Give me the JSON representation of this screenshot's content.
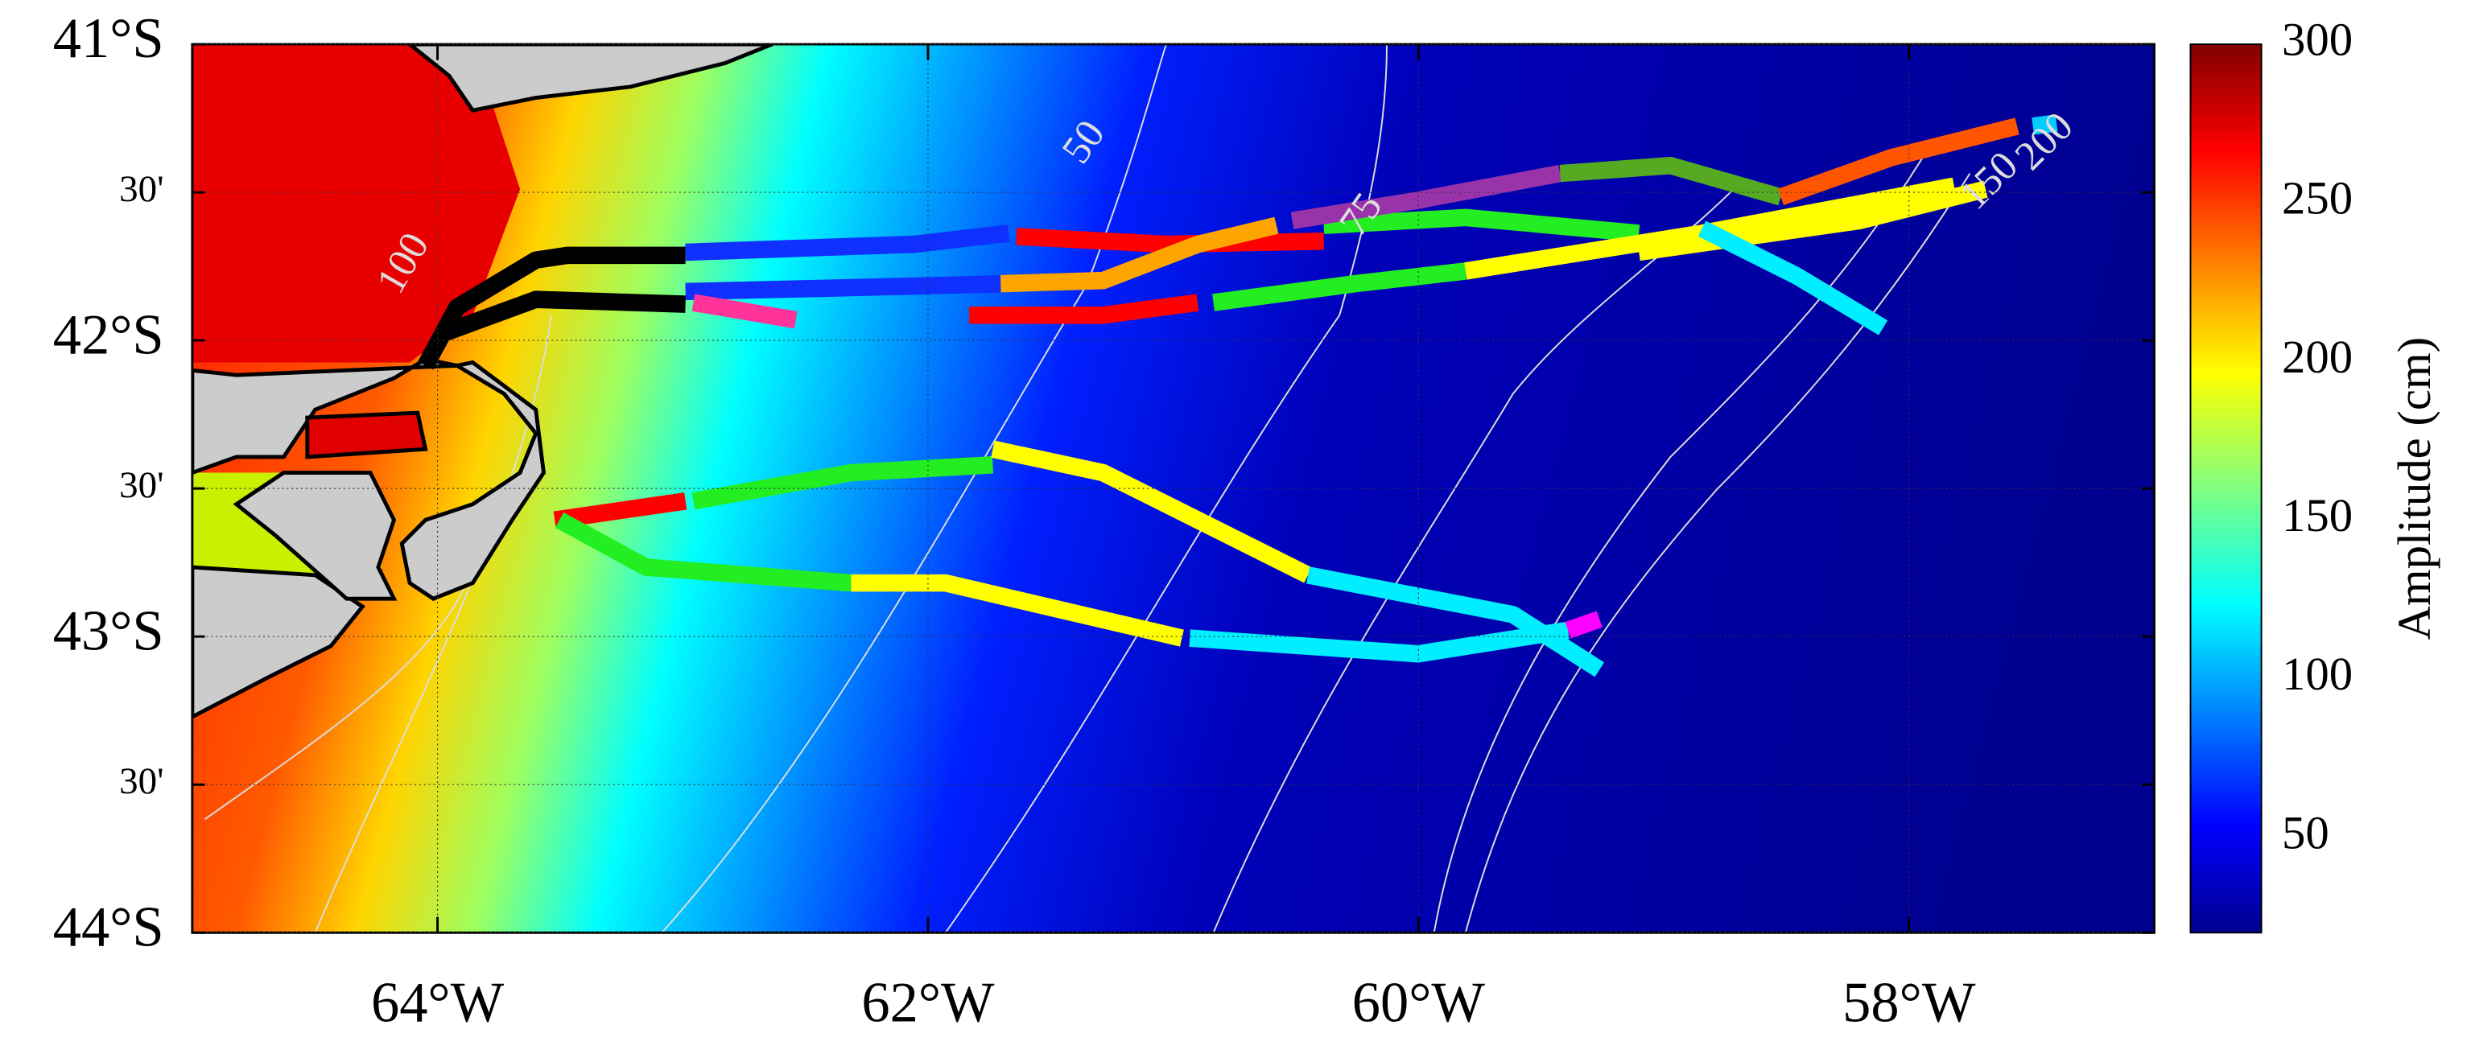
{
  "map": {
    "lat_ticks": [
      {
        "value": 41,
        "label": "41°S"
      },
      {
        "value": 41.5,
        "label": "30'"
      },
      {
        "value": 42,
        "label": "42°S"
      },
      {
        "value": 42.5,
        "label": "30'"
      },
      {
        "value": 43,
        "label": "43°S"
      },
      {
        "value": 43.5,
        "label": "30'"
      },
      {
        "value": 44,
        "label": "44°S"
      }
    ],
    "lon_ticks": [
      {
        "value": 64,
        "label": "64°W"
      },
      {
        "value": 62,
        "label": "62°W"
      },
      {
        "value": 60,
        "label": "60°W"
      },
      {
        "value": 58,
        "label": "58°W"
      }
    ],
    "lat_range": [
      41,
      44
    ],
    "lon_range": [
      65,
      57
    ],
    "colorbar": {
      "label": "Amplitude (cm)",
      "range": [
        20,
        300
      ],
      "ticks": [
        50,
        100,
        150,
        200,
        250,
        300
      ]
    },
    "contour_labels": [
      "50",
      "75",
      "100",
      "150",
      "200"
    ]
  }
}
